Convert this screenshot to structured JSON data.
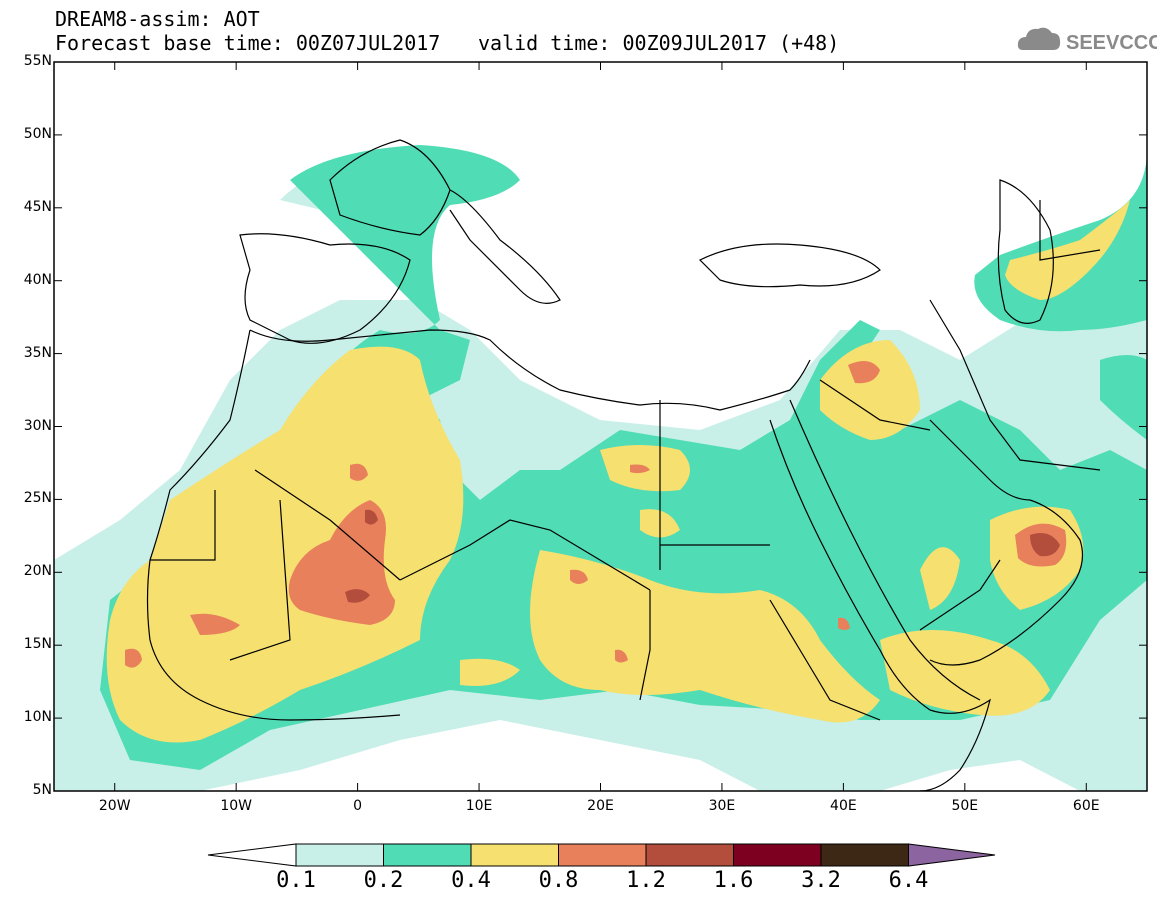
{
  "header": {
    "line1": "DREAM8-assim: AOT",
    "line2": "Forecast base time: 00Z07JUL2017",
    "valid": "valid time: 00Z09JUL2017 (+48)",
    "logo_text": "SEEVCCC"
  },
  "map": {
    "lon_range": [
      -25,
      65
    ],
    "lat_range": [
      5,
      55
    ],
    "lat_labels": [
      "55N",
      "50N",
      "45N",
      "40N",
      "35N",
      "30N",
      "25N",
      "20N",
      "15N",
      "10N",
      "5N"
    ],
    "lon_labels": [
      "20W",
      "10W",
      "0",
      "10E",
      "20E",
      "30E",
      "40E",
      "50E",
      "60E"
    ]
  },
  "colorbar": {
    "labels": [
      "0.1",
      "0.2",
      "0.4",
      "0.8",
      "1.2",
      "1.6",
      "3.2",
      "6.4"
    ],
    "colors": [
      "#c8f0e8",
      "#50dcb4",
      "#f5e070",
      "#e8805c",
      "#b44e3c",
      "#7e0020",
      "#3c2814",
      "#8c64a0"
    ],
    "low_color": "#ffffff"
  }
}
